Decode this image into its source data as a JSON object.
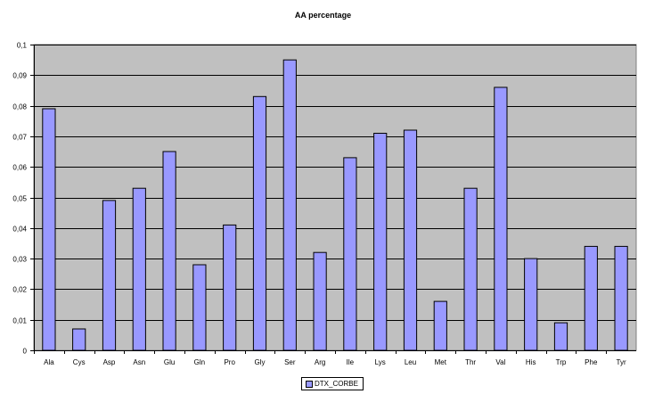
{
  "chart_data": {
    "type": "bar",
    "title": "AA percentage",
    "categories": [
      "Ala",
      "Cys",
      "Asp",
      "Asn",
      "Glu",
      "Gln",
      "Pro",
      "Gly",
      "Ser",
      "Arg",
      "Ile",
      "Lys",
      "Leu",
      "Met",
      "Thr",
      "Val",
      "His",
      "Trp",
      "Phe",
      "Tyr"
    ],
    "series": [
      {
        "name": "DTX_CORBE",
        "values": [
          0.079,
          0.007,
          0.049,
          0.053,
          0.065,
          0.028,
          0.041,
          0.083,
          0.095,
          0.032,
          0.063,
          0.071,
          0.072,
          0.016,
          0.053,
          0.086,
          0.03,
          0.009,
          0.034,
          0.034
        ]
      }
    ],
    "ylim": [
      0,
      0.1
    ],
    "yticks": [
      "0",
      "0,01",
      "0,02",
      "0,03",
      "0,04",
      "0,05",
      "0,06",
      "0,07",
      "0,08",
      "0,09",
      "0,1"
    ],
    "grid": true,
    "legend_position": "bottom",
    "colors": {
      "bar_fill": "#9999ff",
      "bar_stroke": "#000000",
      "plot_background": "#c0c0c0",
      "gridline": "#000000"
    }
  }
}
